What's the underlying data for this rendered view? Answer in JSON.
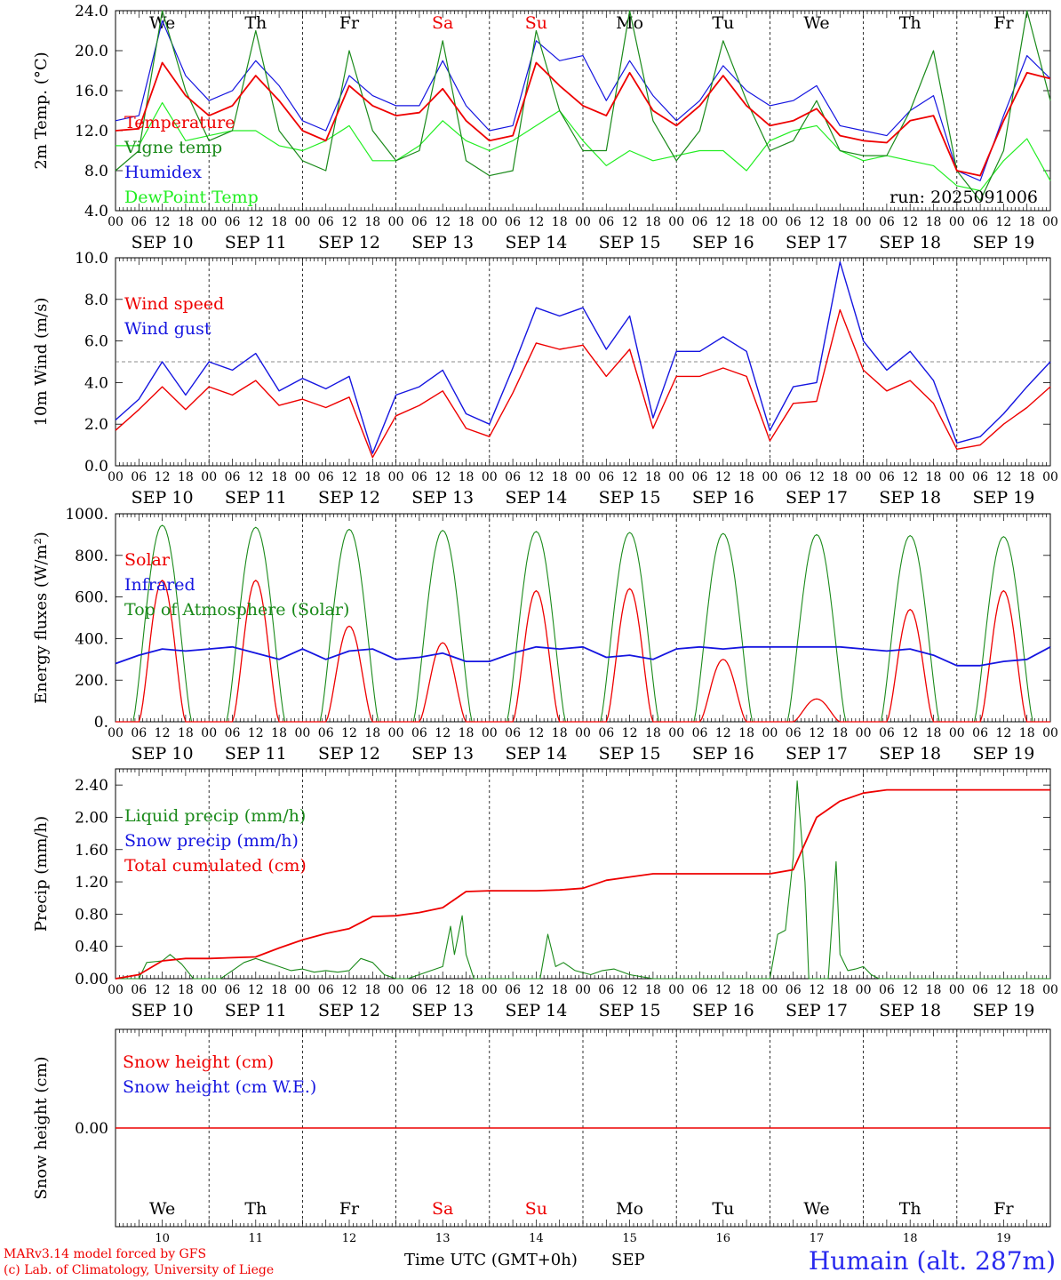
{
  "colors": {
    "red": "#ee0000",
    "green": "#1a8a1a",
    "blue": "#1515e0",
    "lightgreen": "#22ee22",
    "grid": "#444444",
    "weekend": "#ee0000",
    "station": "#2a2aee"
  },
  "days": [
    "We",
    "Th",
    "Fr",
    "Sa",
    "Su",
    "Mo",
    "Tu",
    "We",
    "Th",
    "Fr"
  ],
  "weekend_days": [
    "Sa",
    "Su"
  ],
  "date_labels": [
    "SEP 10",
    "SEP 11",
    "SEP 12",
    "SEP 13",
    "SEP 14",
    "SEP 15",
    "SEP 16",
    "SEP 17",
    "SEP 18",
    "SEP 19"
  ],
  "day_numbers": [
    "10",
    "11",
    "12",
    "13",
    "14",
    "15",
    "16",
    "17",
    "18",
    "19"
  ],
  "hour_ticks": [
    "00",
    "06",
    "12",
    "18"
  ],
  "final_tick": "00",
  "footer": {
    "model": "MARv3.14 model forced by GFS",
    "lab": "(c) Lab. of Climatology, University of Liege",
    "axis_title": "Time UTC (GMT+0h)",
    "month": "SEP",
    "station": "Humain (alt. 287m)"
  },
  "chart_data": [
    {
      "type": "line",
      "ylabel": "2m Temp. (°C)",
      "ylim": [
        4,
        24
      ],
      "yticks": [
        "4.0",
        "8.0",
        "12.0",
        "16.0",
        "20.0",
        "24.0"
      ],
      "yticks_values": [
        4,
        8,
        12,
        16,
        20,
        24
      ],
      "annotation": "run: 2025091006",
      "x_hours": [
        0,
        6,
        12,
        18,
        24,
        30,
        36,
        42,
        48,
        54,
        60,
        66,
        72,
        78,
        84,
        90,
        96,
        102,
        108,
        114,
        120,
        126,
        132,
        138,
        144,
        150,
        156,
        162,
        168,
        174,
        180,
        186,
        192,
        198,
        204,
        210,
        216,
        222,
        228,
        234,
        240
      ],
      "series": [
        {
          "name": "Temperature",
          "color": "red",
          "values": [
            12,
            12.2,
            18.8,
            15.5,
            13.5,
            14.5,
            17.5,
            15,
            12,
            11,
            16.5,
            14.5,
            13.5,
            13.8,
            16.2,
            13,
            11,
            11.5,
            18.8,
            16.5,
            14.5,
            13.5,
            17.8,
            14,
            12.5,
            14.5,
            17.5,
            14.5,
            12.5,
            13,
            14.2,
            11.5,
            11,
            10.8,
            13,
            13.5,
            8,
            7.5,
            13,
            17.8,
            17.2
          ]
        },
        {
          "name": "Vigne temp",
          "color": "green",
          "values": [
            8,
            10,
            24,
            16,
            11,
            12,
            22,
            12,
            9,
            8,
            20,
            12,
            9,
            10,
            21,
            9,
            7.5,
            8,
            22,
            14,
            10,
            10,
            24,
            13,
            9,
            12,
            21,
            15,
            10,
            11,
            15,
            10,
            9.5,
            9.5,
            14,
            20,
            8,
            5,
            10,
            24,
            15
          ]
        },
        {
          "name": "Humidex",
          "color": "blue",
          "values": [
            13,
            13.5,
            23,
            17.5,
            15,
            16,
            19,
            16.5,
            13,
            12,
            17.5,
            15.5,
            14.5,
            14.5,
            19,
            14.5,
            12,
            12.5,
            21,
            19,
            19.5,
            15,
            19,
            15.5,
            13,
            15,
            18.5,
            16,
            14.5,
            15,
            16.5,
            12.5,
            12,
            11.5,
            14,
            15.5,
            8,
            7,
            13.5,
            19.5,
            17.2
          ]
        },
        {
          "name": "DewPoint Temp",
          "color": "lightgreen",
          "values": [
            10.5,
            10.5,
            14.8,
            11,
            11.5,
            12,
            12,
            10.5,
            10,
            11,
            12.5,
            9,
            9,
            10.5,
            13,
            11,
            10,
            11,
            12.5,
            14,
            11,
            8.5,
            10,
            9,
            9.5,
            10,
            10,
            8,
            11,
            12,
            12.5,
            10,
            9,
            9.5,
            9,
            8.5,
            6.5,
            6,
            9,
            11.2,
            7
          ]
        }
      ]
    },
    {
      "type": "line",
      "ylabel": "10m Wind (m/s)",
      "ylim": [
        0,
        10
      ],
      "yticks": [
        "0.0",
        "2.0",
        "4.0",
        "6.0",
        "8.0",
        "10.0"
      ],
      "yticks_values": [
        0,
        2,
        4,
        6,
        8,
        10
      ],
      "reference_line": 5,
      "x_hours": [
        0,
        6,
        12,
        18,
        24,
        30,
        36,
        42,
        48,
        54,
        60,
        66,
        72,
        78,
        84,
        90,
        96,
        102,
        108,
        114,
        120,
        126,
        132,
        138,
        144,
        150,
        156,
        162,
        168,
        174,
        180,
        186,
        192,
        198,
        204,
        210,
        216,
        222,
        228,
        234,
        240
      ],
      "series": [
        {
          "name": "Wind speed",
          "color": "red",
          "values": [
            1.7,
            2.7,
            3.8,
            2.7,
            3.8,
            3.4,
            4.1,
            2.9,
            3.2,
            2.8,
            3.3,
            0.4,
            2.4,
            2.9,
            3.6,
            1.8,
            1.4,
            3.5,
            5.9,
            5.6,
            5.8,
            4.3,
            5.6,
            1.8,
            4.3,
            4.3,
            4.7,
            4.3,
            1.2,
            3,
            3.1,
            7.5,
            4.6,
            3.6,
            4.1,
            3,
            0.8,
            1,
            2,
            2.8,
            3.8
          ]
        },
        {
          "name": "Wind gust",
          "color": "blue",
          "values": [
            2.2,
            3.2,
            5,
            3.4,
            5,
            4.6,
            5.4,
            3.6,
            4.2,
            3.7,
            4.3,
            0.6,
            3.4,
            3.8,
            4.6,
            2.5,
            2,
            4.7,
            7.6,
            7.2,
            7.6,
            5.6,
            7.2,
            2.3,
            5.5,
            5.5,
            6.2,
            5.5,
            1.7,
            3.8,
            4,
            9.8,
            6,
            4.6,
            5.5,
            4.1,
            1.1,
            1.4,
            2.5,
            3.8,
            5
          ]
        }
      ]
    },
    {
      "type": "line",
      "ylabel": "Energy fluxes (W/m²)",
      "ylim": [
        0,
        1000
      ],
      "yticks": [
        "0.",
        "200.",
        "400.",
        "600.",
        "800.",
        "1000."
      ],
      "yticks_values": [
        0,
        200,
        400,
        600,
        800,
        1000
      ],
      "toa_peaks": [
        945,
        935,
        925,
        920,
        915,
        910,
        905,
        900,
        895,
        890
      ],
      "solar_peaks": [
        680,
        680,
        460,
        380,
        630,
        640,
        300,
        110,
        540,
        630
      ],
      "infrared": [
        280,
        320,
        350,
        340,
        350,
        360,
        330,
        300,
        350,
        300,
        340,
        350,
        300,
        310,
        330,
        290,
        290,
        330,
        360,
        350,
        360,
        310,
        320,
        300,
        350,
        360,
        350,
        360,
        360,
        360,
        360,
        360,
        350,
        340,
        350,
        320,
        270,
        270,
        290,
        300,
        360
      ],
      "x_hours": [
        0,
        6,
        12,
        18,
        24,
        30,
        36,
        42,
        48,
        54,
        60,
        66,
        72,
        78,
        84,
        90,
        96,
        102,
        108,
        114,
        120,
        126,
        132,
        138,
        144,
        150,
        156,
        162,
        168,
        174,
        180,
        186,
        192,
        198,
        204,
        210,
        216,
        222,
        228,
        234,
        240
      ],
      "series": [
        {
          "name": "Solar",
          "color": "red"
        },
        {
          "name": "Infrared",
          "color": "blue"
        },
        {
          "name": "Top of Atmosphere (Solar)",
          "color": "green"
        }
      ]
    },
    {
      "type": "line",
      "ylabel": "Precip (mm/h)",
      "ylim": [
        0,
        2.6
      ],
      "yticks": [
        "0.00",
        "0.40",
        "0.80",
        "1.20",
        "1.60",
        "2.00",
        "2.40"
      ],
      "yticks_values": [
        0,
        0.4,
        0.8,
        1.2,
        1.6,
        2.0,
        2.4
      ],
      "cumulated": {
        "hours": [
          0,
          6,
          12,
          18,
          24,
          30,
          36,
          42,
          48,
          54,
          60,
          66,
          72,
          78,
          84,
          90,
          96,
          102,
          108,
          114,
          120,
          126,
          132,
          138,
          144,
          150,
          156,
          162,
          168,
          174,
          180,
          186,
          192,
          198,
          204,
          210,
          216,
          222,
          228,
          234,
          240
        ],
        "values": [
          0,
          0.05,
          0.22,
          0.25,
          0.25,
          0.26,
          0.27,
          0.38,
          0.48,
          0.56,
          0.62,
          0.77,
          0.78,
          0.82,
          0.88,
          1.08,
          1.09,
          1.09,
          1.09,
          1.1,
          1.12,
          1.22,
          1.26,
          1.3,
          1.3,
          1.3,
          1.3,
          1.3,
          1.3,
          1.35,
          2.0,
          2.2,
          2.3,
          2.34,
          2.34,
          2.34,
          2.34,
          2.34,
          2.34,
          2.34,
          2.34
        ]
      },
      "liquid": {
        "hours": [
          0,
          6,
          8,
          12,
          14,
          17,
          20,
          24,
          27,
          30,
          33,
          36,
          39,
          42,
          45,
          48,
          51,
          54,
          57,
          60,
          63,
          66,
          69,
          72,
          75,
          78,
          81,
          84,
          86,
          87,
          89,
          90,
          92,
          96,
          100,
          105,
          109,
          111,
          113,
          115,
          118,
          122,
          125,
          128,
          132,
          138,
          144,
          150,
          156,
          162,
          166,
          168,
          170,
          172,
          174,
          175,
          177,
          178,
          180,
          182,
          183,
          185,
          186,
          188,
          190,
          192,
          194,
          196,
          198,
          204,
          210,
          216,
          222,
          228,
          234,
          240
        ],
        "values": [
          0,
          0,
          0.2,
          0.22,
          0.3,
          0.18,
          0,
          0,
          0,
          0.1,
          0.2,
          0.25,
          0.2,
          0.15,
          0.1,
          0.12,
          0.08,
          0.1,
          0.08,
          0.1,
          0.25,
          0.2,
          0.05,
          0,
          0,
          0.05,
          0.1,
          0.15,
          0.65,
          0.3,
          0.78,
          0.3,
          0,
          0,
          0,
          0,
          0,
          0.55,
          0.15,
          0.2,
          0.1,
          0.05,
          0.1,
          0.12,
          0.05,
          0,
          0,
          0,
          0,
          0,
          0,
          0,
          0.55,
          0.6,
          1.5,
          2.45,
          1.2,
          0,
          0,
          0,
          0,
          1.45,
          0.3,
          0.1,
          0.12,
          0.15,
          0.05,
          0,
          0,
          0,
          0,
          0,
          0,
          0,
          0,
          0
        ]
      },
      "series": [
        {
          "name": "Liquid precip (mm/h)",
          "color": "green"
        },
        {
          "name": "Snow precip (mm/h)",
          "color": "blue"
        },
        {
          "name": "Total cumulated (cm)",
          "color": "red"
        }
      ]
    },
    {
      "type": "line",
      "ylabel": "Snow height (cm)",
      "ylim": [
        -1,
        1
      ],
      "yticks": [
        "0.00"
      ],
      "yticks_values": [
        0
      ],
      "series": [
        {
          "name": "Snow height (cm)",
          "color": "red",
          "values": [
            0,
            0
          ]
        },
        {
          "name": "Snow height (cm W.E.)",
          "color": "blue",
          "values": [
            0,
            0
          ]
        }
      ]
    }
  ]
}
